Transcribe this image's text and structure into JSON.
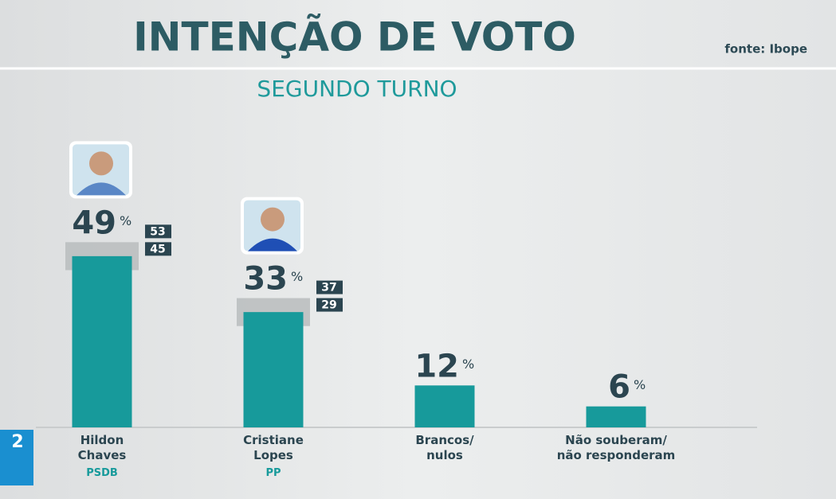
{
  "chart_data": {
    "type": "bar",
    "title": "INTENÇÃO DE VOTO",
    "subtitle": "SEGUNDO TURNO",
    "source": "fonte: Ibope",
    "categories": [
      "Hildon\nChaves",
      "Cristiane\nLopes",
      "Brancos/\nnulos",
      "Não souberam/\nnão responderam"
    ],
    "parties": [
      "PSDB",
      "PP",
      null,
      null
    ],
    "values": [
      49,
      33,
      12,
      6
    ],
    "unit": "%",
    "upper": [
      53,
      37,
      null,
      null
    ],
    "lower": [
      45,
      29,
      null,
      null
    ],
    "color": "#179a9b"
  }
}
